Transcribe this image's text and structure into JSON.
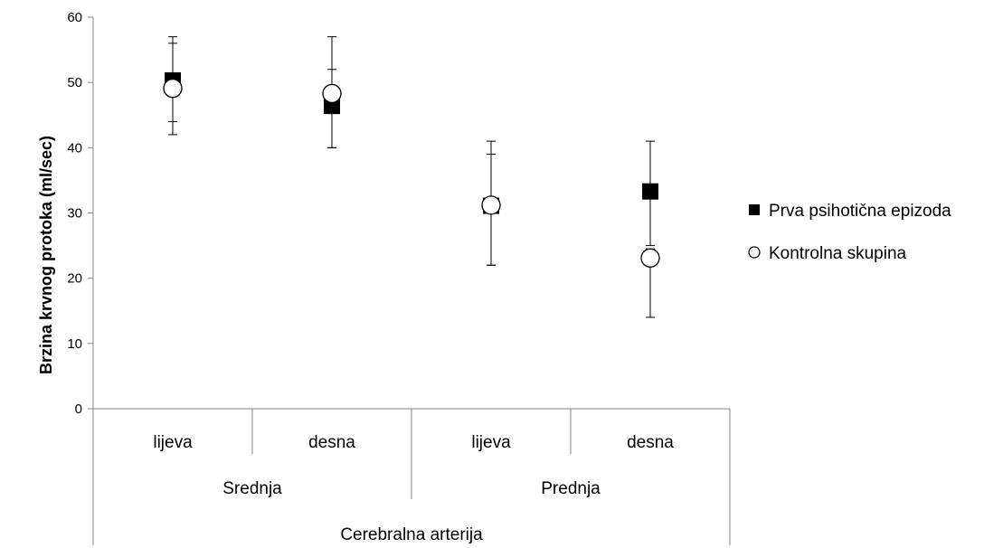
{
  "chart_data": {
    "type": "scatter",
    "ylabel": "Brzina krvnog protoka (ml/sec)",
    "ylim": [
      0,
      60
    ],
    "yticks": [
      0,
      10,
      20,
      30,
      40,
      50,
      60
    ],
    "grid": false,
    "legend_position": "right",
    "categories": [
      "lijeva",
      "desna",
      "lijeva",
      "desna"
    ],
    "category_groups": [
      {
        "label": "Srednja",
        "span": [
          0,
          1
        ]
      },
      {
        "label": "Prednja",
        "span": [
          2,
          3
        ]
      }
    ],
    "category_supergroup": "Cerebralna arterija",
    "series": [
      {
        "name": "Prva psihotična epizoda",
        "marker": "square-filled",
        "color": "#000000",
        "values": [
          50.3,
          46.4,
          31.1,
          33.3
        ],
        "error_low": [
          44,
          40,
          22,
          25
        ],
        "error_high": [
          56,
          52,
          39,
          41
        ]
      },
      {
        "name": "Kontrolna skupina",
        "marker": "circle-open",
        "color": "#000000",
        "values": [
          49.1,
          48.3,
          31.2,
          23.1
        ],
        "error_low": [
          42,
          40,
          22,
          14
        ],
        "error_high": [
          57,
          57,
          41,
          24.5
        ]
      }
    ]
  }
}
